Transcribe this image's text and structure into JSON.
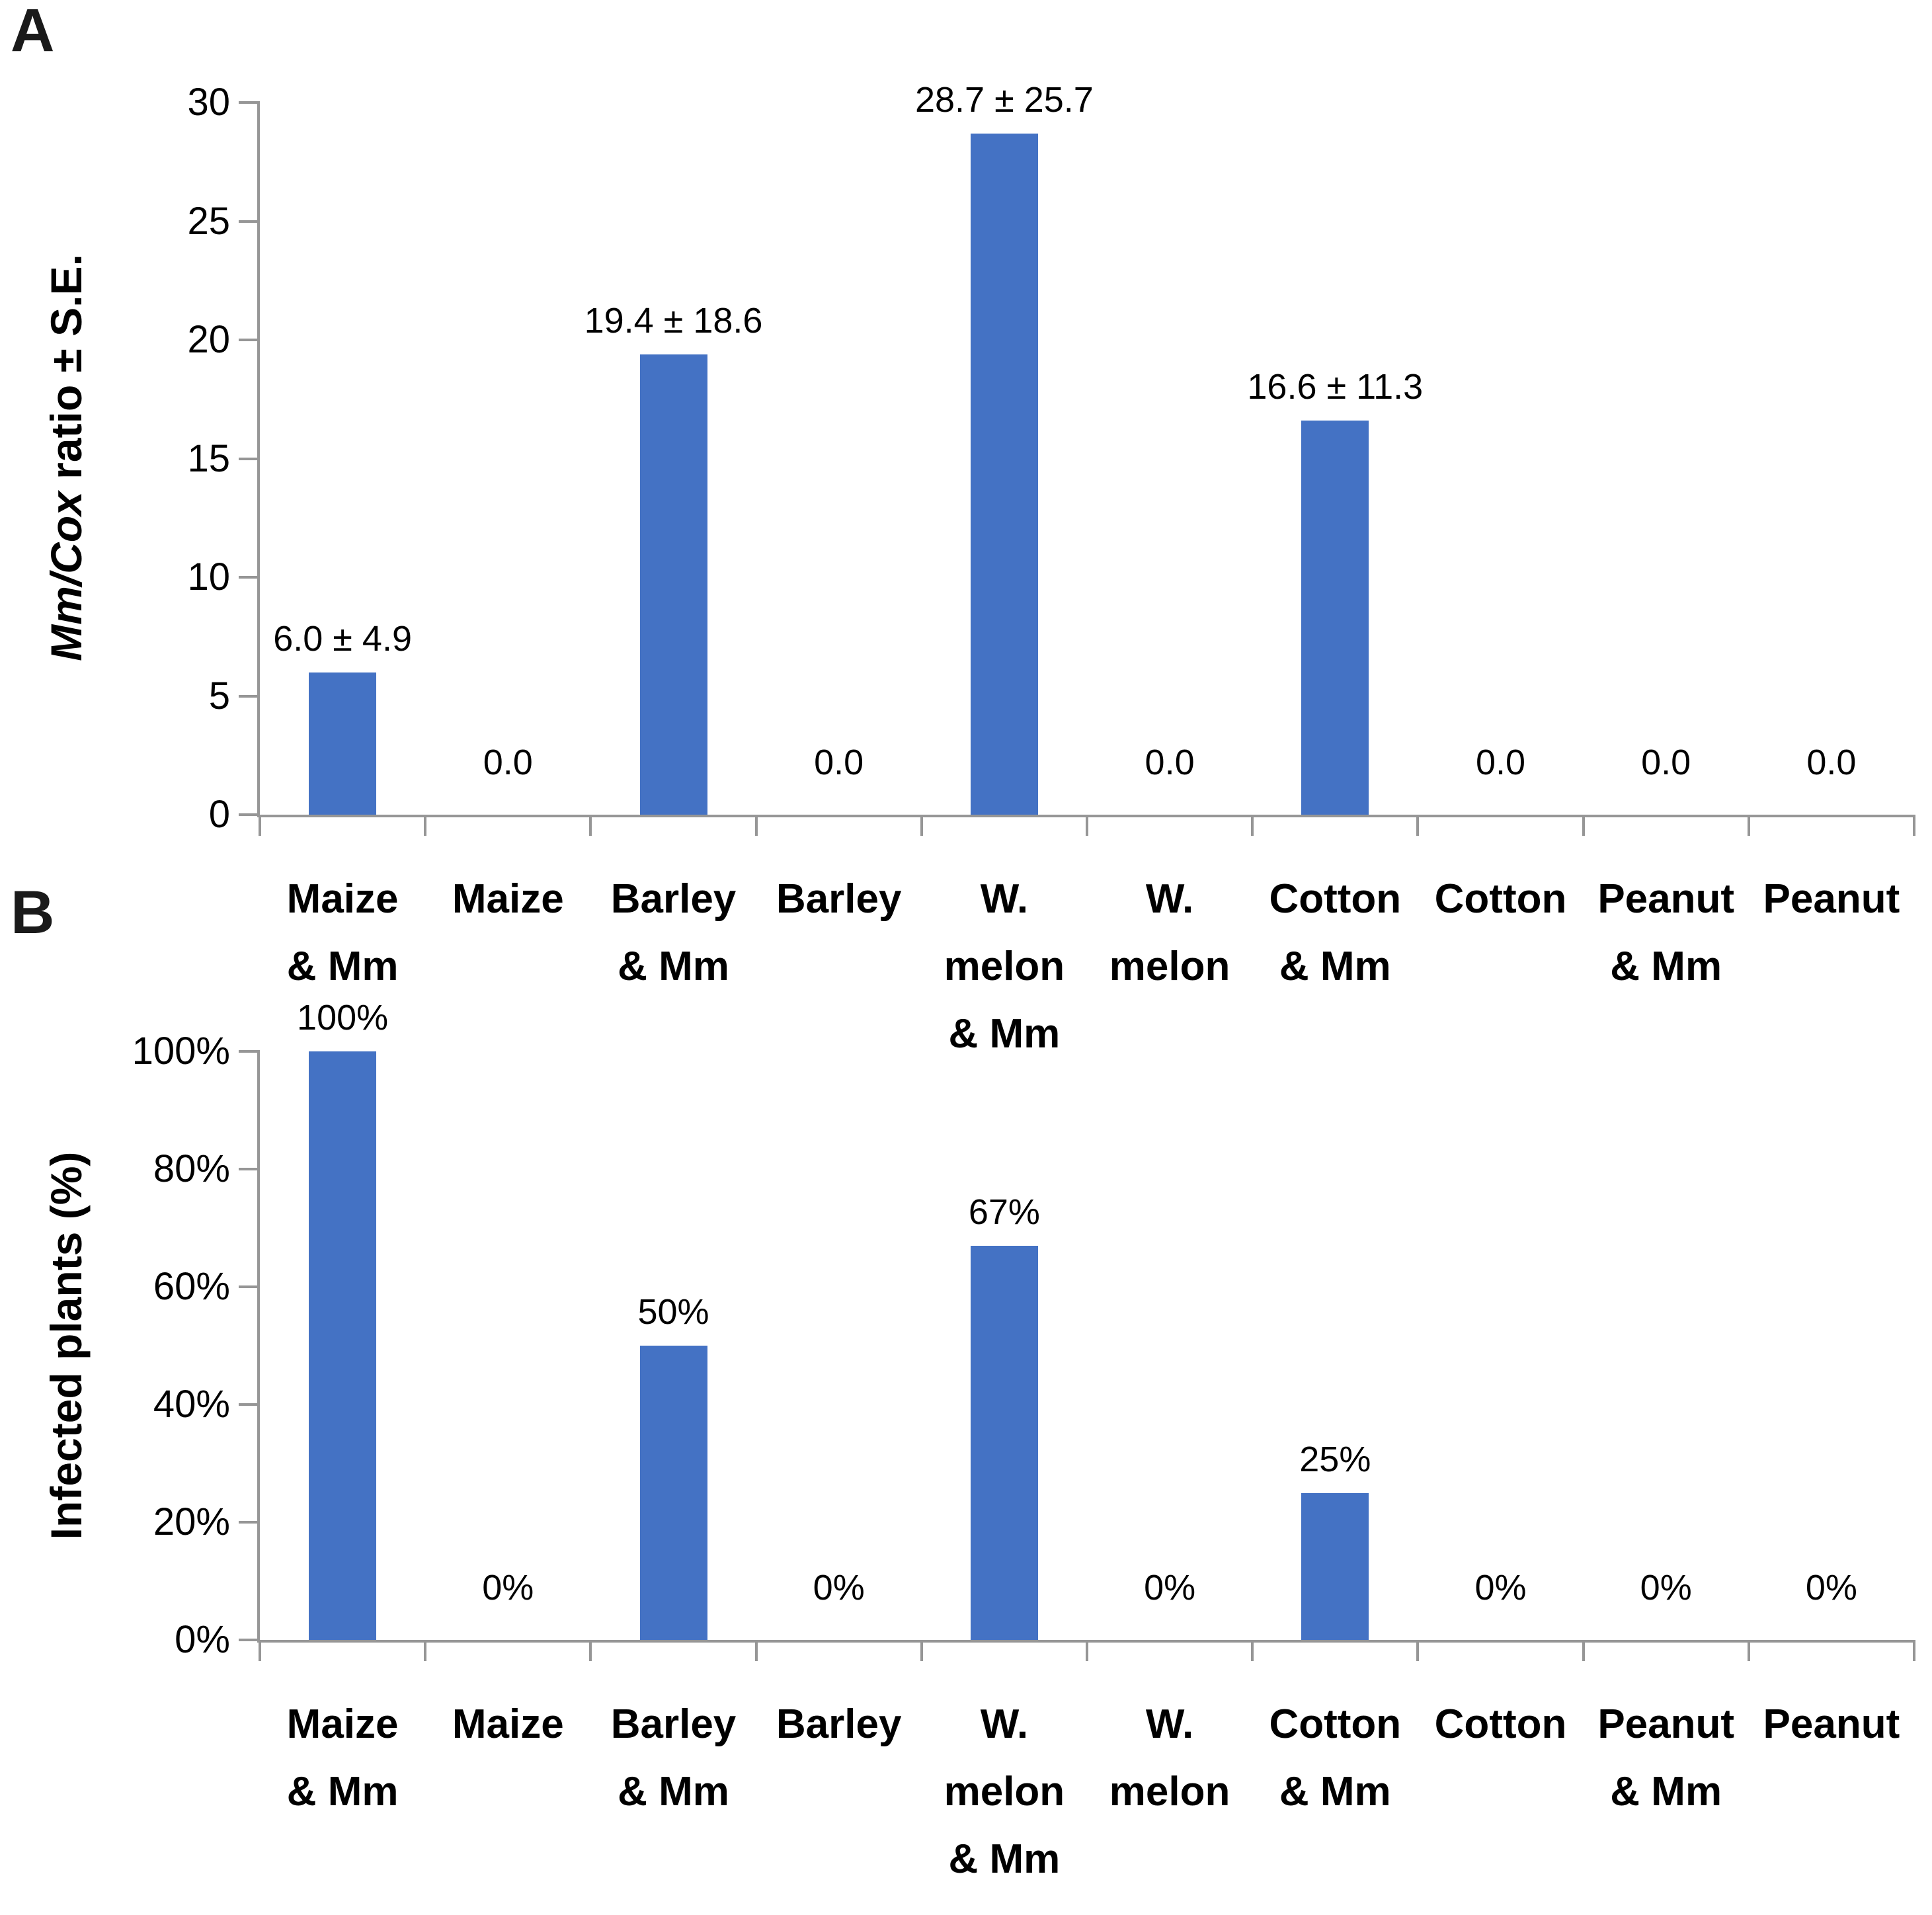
{
  "figure": {
    "panel_a_letter": "A",
    "panel_b_letter": "B",
    "bar_color": "#4472C4",
    "axis_color": "#969696",
    "text_color": "#000000",
    "background": "#FFFFFF"
  },
  "chart_data": [
    {
      "panel": "A",
      "type": "bar",
      "ylabel": "Mm/Cox ratio ± S.E.",
      "ylabel_italic": "Mm/Cox",
      "ylabel_rest": " ratio ± S.E.",
      "xlabel": "",
      "ylim": [
        0,
        30
      ],
      "yticks": [
        0,
        5,
        10,
        15,
        20,
        25,
        30
      ],
      "ytick_labels": [
        "0",
        "5",
        "10",
        "15",
        "20",
        "25",
        "30"
      ],
      "grid": false,
      "legend": false,
      "categories": [
        "Maize & Mm",
        "Maize",
        "Barley & Mm",
        "Barley",
        "W. melon & Mm",
        "W. melon",
        "Cotton & Mm",
        "Cotton",
        "Peanut & Mm",
        "Peanut"
      ],
      "category_lines": [
        [
          "Maize",
          "& Mm"
        ],
        [
          "Maize"
        ],
        [
          "Barley",
          "& Mm"
        ],
        [
          "Barley"
        ],
        [
          "W.",
          "melon",
          "& Mm"
        ],
        [
          "W.",
          "melon"
        ],
        [
          "Cotton",
          "& Mm"
        ],
        [
          "Cotton"
        ],
        [
          "Peanut",
          "& Mm"
        ],
        [
          "Peanut"
        ]
      ],
      "values": [
        6.0,
        0,
        19.4,
        0,
        28.7,
        0,
        16.6,
        0,
        0,
        0
      ],
      "data_labels": [
        "6.0 ± 4.9",
        "0.0",
        "19.4 ± 18.6",
        "0.0",
        "28.7 ± 25.7",
        "0.0",
        "16.6 ± 11.3",
        "0.0",
        "0.0",
        "0.0"
      ]
    },
    {
      "panel": "B",
      "type": "bar",
      "ylabel": "Infected plants (%)",
      "ylabel_italic": "",
      "ylabel_rest": "Infected plants (%)",
      "xlabel": "",
      "ylim": [
        0,
        100
      ],
      "yticks": [
        0,
        20,
        40,
        60,
        80,
        100
      ],
      "ytick_labels": [
        "0%",
        "20%",
        "40%",
        "60%",
        "80%",
        "100%"
      ],
      "grid": false,
      "legend": false,
      "categories": [
        "Maize & Mm",
        "Maize",
        "Barley & Mm",
        "Barley",
        "W. melon & Mm",
        "W. melon",
        "Cotton & Mm",
        "Cotton",
        "Peanut & Mm",
        "Peanut"
      ],
      "category_lines": [
        [
          "Maize",
          "& Mm"
        ],
        [
          "Maize"
        ],
        [
          "Barley",
          "& Mm"
        ],
        [
          "Barley"
        ],
        [
          "W.",
          "melon",
          "& Mm"
        ],
        [
          "W.",
          "melon"
        ],
        [
          "Cotton",
          "& Mm"
        ],
        [
          "Cotton"
        ],
        [
          "Peanut",
          "& Mm"
        ],
        [
          "Peanut"
        ]
      ],
      "values": [
        100,
        0,
        50,
        0,
        67,
        0,
        25,
        0,
        0,
        0
      ],
      "data_labels": [
        "100%",
        "0%",
        "50%",
        "0%",
        "67%",
        "0%",
        "25%",
        "0%",
        "0%",
        "0%"
      ]
    }
  ]
}
